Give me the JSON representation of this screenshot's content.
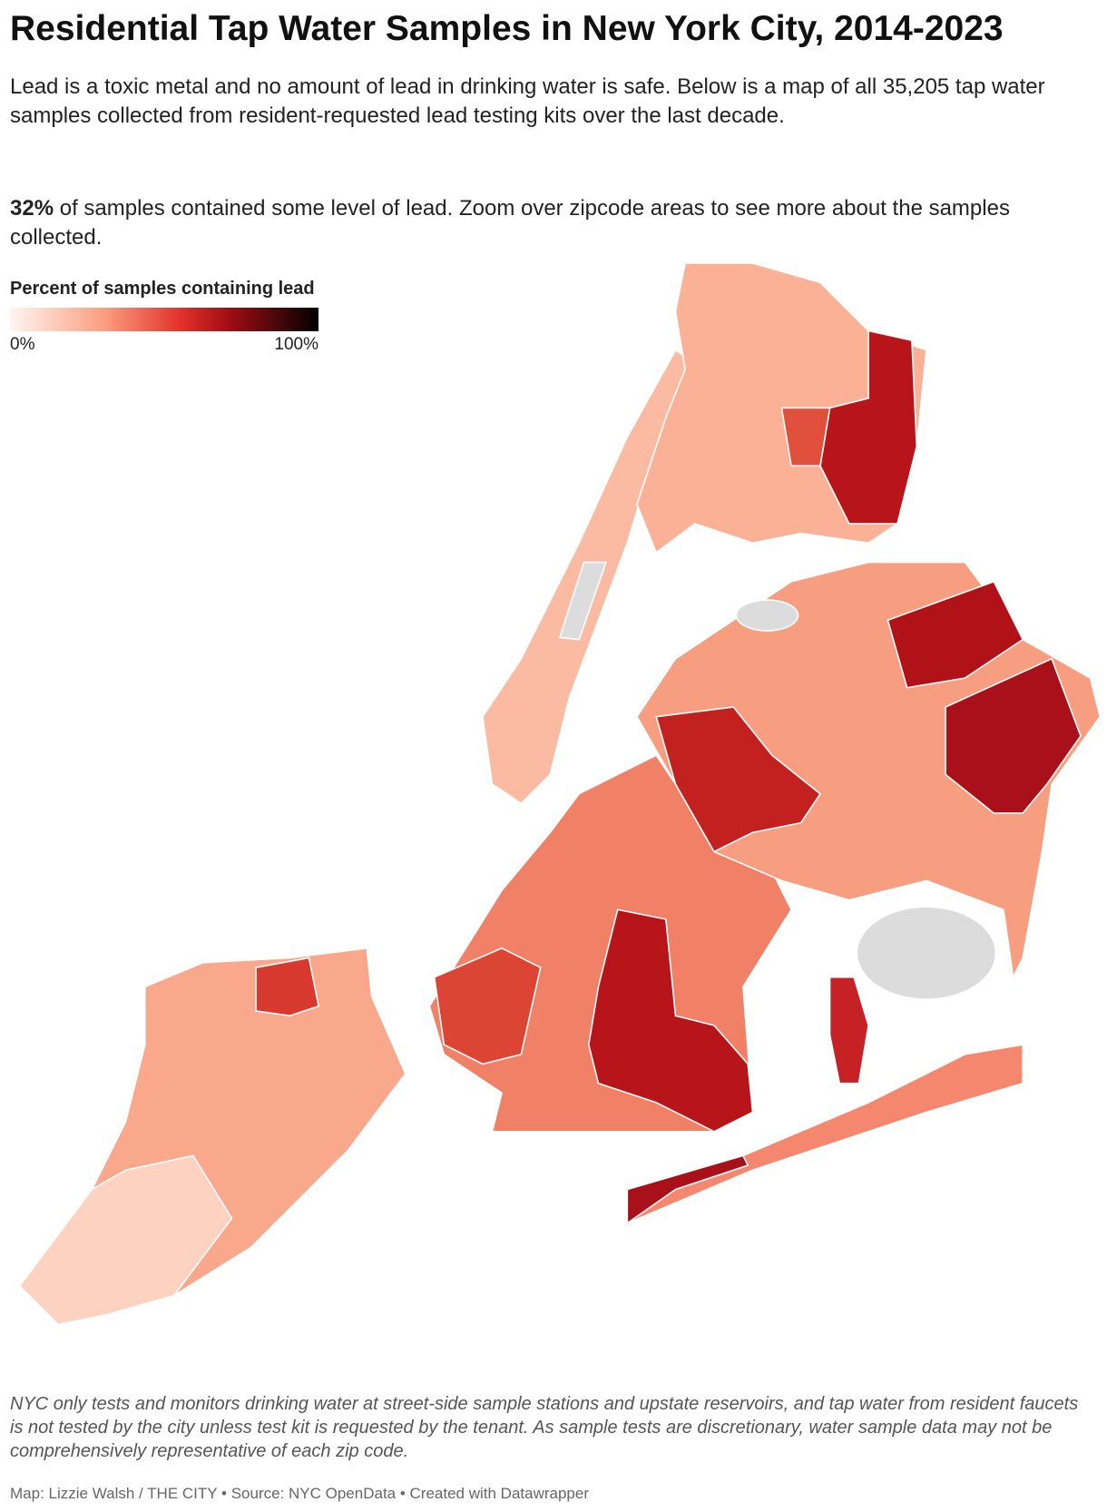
{
  "header": {
    "title": "Residential Tap Water Samples in New York City, 2014-2023",
    "intro": "Lead is a toxic metal and no amount of lead in drinking water is safe. Below is a map of all 35,205 tap water samples collected from resident-requested lead testing kits over the last decade.",
    "highlight": "32%",
    "summary": " of samples contained some level of lead. Zoom over zipcode areas to see more about the samples collected."
  },
  "legend": {
    "title": "Percent of samples containing lead",
    "ticks": [
      {
        "value": 0,
        "label": "0%"
      },
      {
        "value": 100,
        "label": "100%"
      }
    ]
  },
  "footer": {
    "note": "NYC only tests and monitors drinking water at street-side sample stations and upstate reservoirs, and tap water from resident faucets is not tested by the city unless test kit is requested by the tenant. As sample tests are discretionary, water sample data may not be comprehensively representative of each zip code.",
    "credit": "Map: Lizzie Walsh / THE CITY • Source: NYC OpenData • Created with Datawrapper"
  }
}
